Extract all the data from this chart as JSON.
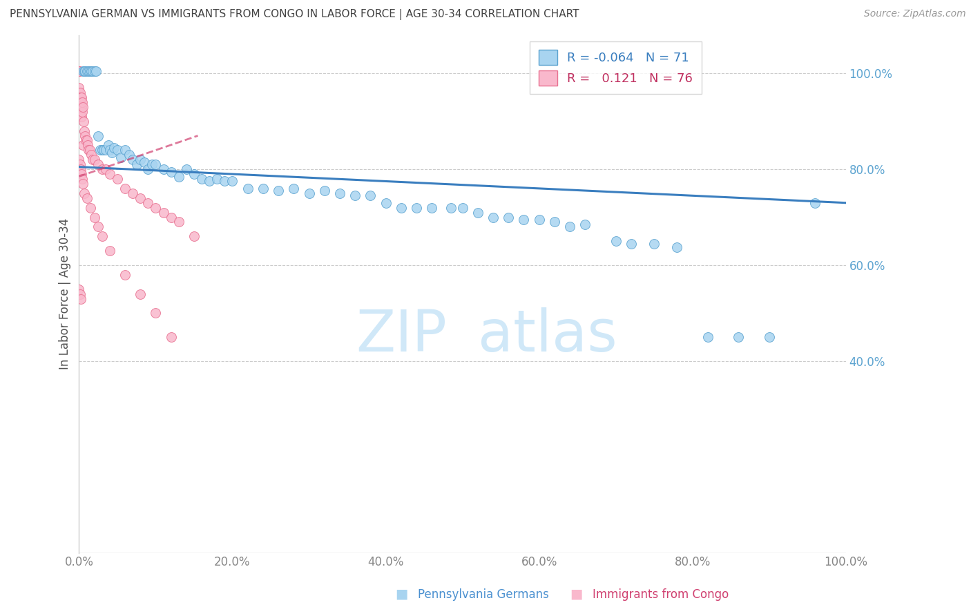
{
  "title": "PENNSYLVANIA GERMAN VS IMMIGRANTS FROM CONGO IN LABOR FORCE | AGE 30-34 CORRELATION CHART",
  "source": "Source: ZipAtlas.com",
  "ylabel": "In Labor Force | Age 30-34",
  "xlim": [
    0.0,
    1.0
  ],
  "ylim": [
    0.0,
    1.08
  ],
  "xtick_values": [
    0.0,
    0.2,
    0.4,
    0.6,
    0.8,
    1.0
  ],
  "xtick_labels": [
    "0.0%",
    "20.0%",
    "40.0%",
    "60.0%",
    "80.0%",
    "100.0%"
  ],
  "ytick_values": [
    0.4,
    0.6,
    0.8,
    1.0
  ],
  "ytick_labels": [
    "40.0%",
    "60.0%",
    "80.0%",
    "100.0%"
  ],
  "blue_R": -0.064,
  "blue_N": 71,
  "pink_R": 0.121,
  "pink_N": 76,
  "blue_fill_color": "#a8d4f0",
  "pink_fill_color": "#f9b8cc",
  "blue_edge_color": "#5ba3d0",
  "pink_edge_color": "#e87090",
  "blue_line_color": "#3a7ebf",
  "pink_line_color": "#d04070",
  "yaxis_label_color": "#5ba3d0",
  "xaxis_label_color": "#888888",
  "legend_blue_text_color": "#3a7ebf",
  "legend_pink_text_color": "#c03060",
  "bottom_blue_text_color": "#4a90d0",
  "bottom_pink_text_color": "#d04070",
  "grid_color": "#cccccc",
  "watermark_color": "#ddeeff",
  "bg_color": "#ffffff",
  "legend_label_blue": "Pennsylvania Germans",
  "legend_label_pink": "Immigrants from Congo",
  "blue_trend_x0": 0.0,
  "blue_trend_y0": 0.805,
  "blue_trend_x1": 1.0,
  "blue_trend_y1": 0.73,
  "pink_trend_x0": 0.0,
  "pink_trend_y0": 0.785,
  "pink_trend_x1": 0.155,
  "pink_trend_y1": 0.87,
  "blue_x": [
    0.005,
    0.007,
    0.008,
    0.01,
    0.012,
    0.014,
    0.016,
    0.018,
    0.02,
    0.022,
    0.025,
    0.028,
    0.03,
    0.032,
    0.035,
    0.038,
    0.04,
    0.043,
    0.046,
    0.05,
    0.055,
    0.06,
    0.065,
    0.07,
    0.075,
    0.08,
    0.085,
    0.09,
    0.095,
    0.1,
    0.11,
    0.12,
    0.13,
    0.14,
    0.15,
    0.16,
    0.17,
    0.18,
    0.19,
    0.2,
    0.22,
    0.24,
    0.26,
    0.28,
    0.3,
    0.32,
    0.34,
    0.36,
    0.38,
    0.4,
    0.42,
    0.44,
    0.46,
    0.485,
    0.5,
    0.52,
    0.54,
    0.56,
    0.58,
    0.6,
    0.62,
    0.64,
    0.66,
    0.7,
    0.72,
    0.75,
    0.78,
    0.82,
    0.86,
    0.9,
    0.96
  ],
  "blue_y": [
    1.005,
    1.005,
    1.005,
    1.005,
    1.005,
    1.005,
    1.005,
    1.005,
    1.005,
    1.005,
    0.87,
    0.84,
    0.84,
    0.84,
    0.84,
    0.85,
    0.84,
    0.835,
    0.845,
    0.84,
    0.825,
    0.84,
    0.83,
    0.82,
    0.81,
    0.82,
    0.815,
    0.8,
    0.81,
    0.81,
    0.8,
    0.795,
    0.785,
    0.8,
    0.79,
    0.78,
    0.775,
    0.78,
    0.775,
    0.775,
    0.76,
    0.76,
    0.755,
    0.76,
    0.75,
    0.755,
    0.75,
    0.745,
    0.745,
    0.73,
    0.72,
    0.72,
    0.72,
    0.72,
    0.72,
    0.71,
    0.7,
    0.7,
    0.695,
    0.695,
    0.69,
    0.68,
    0.685,
    0.65,
    0.645,
    0.645,
    0.638,
    0.45,
    0.45,
    0.45,
    0.73
  ],
  "pink_x": [
    0.0,
    0.0,
    0.0,
    0.0,
    0.0,
    0.0,
    0.0,
    0.0,
    0.0,
    0.0,
    0.0,
    0.0,
    0.0,
    0.0,
    0.0,
    0.001,
    0.001,
    0.001,
    0.001,
    0.001,
    0.002,
    0.002,
    0.002,
    0.002,
    0.003,
    0.003,
    0.003,
    0.004,
    0.004,
    0.005,
    0.005,
    0.006,
    0.007,
    0.008,
    0.009,
    0.01,
    0.011,
    0.012,
    0.014,
    0.016,
    0.018,
    0.02,
    0.025,
    0.03,
    0.035,
    0.04,
    0.05,
    0.06,
    0.07,
    0.08,
    0.09,
    0.1,
    0.11,
    0.12,
    0.13,
    0.15,
    0.0,
    0.001,
    0.002,
    0.003,
    0.004,
    0.005,
    0.007,
    0.01,
    0.015,
    0.02,
    0.025,
    0.03,
    0.04,
    0.06,
    0.08,
    0.1,
    0.12,
    0.0,
    0.001,
    0.002
  ],
  "pink_y": [
    1.005,
    1.005,
    1.005,
    1.005,
    1.005,
    1.005,
    1.005,
    1.005,
    1.005,
    1.005,
    0.97,
    0.96,
    0.95,
    0.94,
    0.93,
    0.96,
    0.95,
    0.94,
    0.93,
    0.92,
    0.95,
    0.94,
    0.92,
    0.91,
    0.95,
    0.93,
    0.91,
    0.94,
    0.92,
    0.93,
    0.85,
    0.9,
    0.88,
    0.87,
    0.86,
    0.86,
    0.85,
    0.84,
    0.84,
    0.83,
    0.82,
    0.82,
    0.81,
    0.8,
    0.8,
    0.79,
    0.78,
    0.76,
    0.75,
    0.74,
    0.73,
    0.72,
    0.71,
    0.7,
    0.69,
    0.66,
    0.82,
    0.81,
    0.8,
    0.79,
    0.78,
    0.77,
    0.75,
    0.74,
    0.72,
    0.7,
    0.68,
    0.66,
    0.63,
    0.58,
    0.54,
    0.5,
    0.45,
    0.55,
    0.54,
    0.53
  ]
}
